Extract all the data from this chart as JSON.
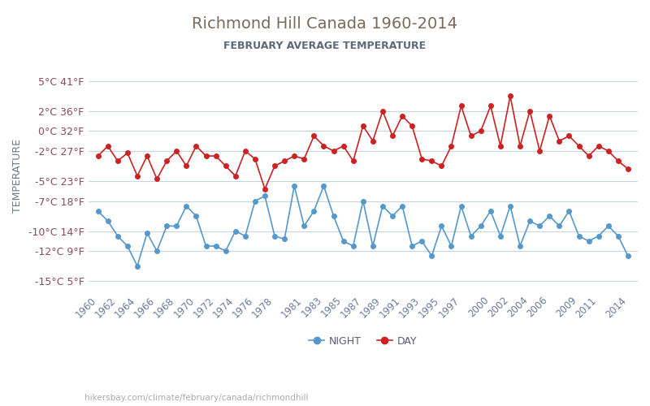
{
  "title": "Richmond Hill Canada 1960-2014",
  "subtitle": "FEBRUARY AVERAGE TEMPERATURE",
  "ylabel": "TEMPERATURE",
  "xlabel_bottom": "hikersbay.com/climate/february/canada/richmondhill",
  "title_color": "#7a6a5a",
  "subtitle_color": "#5a6a7a",
  "ylabel_color": "#6a7a8a",
  "line_color_day": "#cc2222",
  "line_color_night": "#5599cc",
  "background_color": "#ffffff",
  "grid_color": "#c8d4e0",
  "years": [
    1960,
    1961,
    1962,
    1963,
    1964,
    1965,
    1966,
    1967,
    1968,
    1969,
    1970,
    1971,
    1972,
    1973,
    1974,
    1975,
    1976,
    1977,
    1978,
    1979,
    1980,
    1981,
    1982,
    1983,
    1984,
    1985,
    1986,
    1987,
    1988,
    1989,
    1990,
    1991,
    1992,
    1993,
    1994,
    1995,
    1996,
    1997,
    1998,
    1999,
    2000,
    2001,
    2002,
    2003,
    2004,
    2005,
    2006,
    2007,
    2008,
    2009,
    2010,
    2011,
    2012,
    2013,
    2014
  ],
  "day_temps": [
    -2.5,
    -1.5,
    -3.0,
    -2.2,
    -4.5,
    -2.5,
    -4.8,
    -3.0,
    -2.0,
    -3.5,
    -1.5,
    -2.5,
    -2.5,
    -3.5,
    -4.5,
    -2.0,
    -2.8,
    -5.8,
    -3.5,
    -3.0,
    -2.5,
    -2.8,
    -0.5,
    -1.5,
    -2.0,
    -1.5,
    -3.0,
    0.5,
    -1.0,
    2.0,
    -0.5,
    1.5,
    0.5,
    -2.8,
    -3.0,
    -3.5,
    -1.5,
    2.5,
    -0.5,
    0.0,
    2.5,
    -1.5,
    3.5,
    -1.5,
    2.0,
    -2.0,
    1.5,
    -1.0,
    -0.5,
    -1.5,
    -2.5,
    -1.5,
    -2.0,
    -3.0,
    -3.8
  ],
  "night_temps": [
    -8.0,
    -9.0,
    -10.5,
    -11.5,
    -13.5,
    -10.2,
    -12.0,
    -9.5,
    -9.5,
    -7.5,
    -8.5,
    -11.5,
    -11.5,
    -12.0,
    -10.0,
    -10.5,
    -7.0,
    -6.5,
    -10.5,
    -10.8,
    -5.5,
    -9.5,
    -8.0,
    -5.5,
    -8.5,
    -11.0,
    -11.5,
    -7.0,
    -11.5,
    -7.5,
    -8.5,
    -7.5,
    -11.5,
    -11.0,
    -12.5,
    -9.5,
    -11.5,
    -7.5,
    -10.5,
    -9.5,
    -8.0,
    -10.5,
    -7.5,
    -11.5,
    -9.0,
    -9.5,
    -8.5,
    -9.5,
    -8.0,
    -10.5,
    -11.0,
    -10.5,
    -9.5,
    -10.5,
    -12.5
  ],
  "yticks_c": [
    5,
    2,
    0,
    -2,
    -5,
    -7,
    -10,
    -12,
    -15
  ],
  "yticks_f": [
    41,
    36,
    32,
    27,
    23,
    18,
    14,
    9,
    5
  ],
  "xtick_years": [
    1960,
    1962,
    1964,
    1966,
    1968,
    1970,
    1972,
    1974,
    1976,
    1978,
    1981,
    1983,
    1985,
    1987,
    1989,
    1991,
    1993,
    1995,
    1997,
    2000,
    2002,
    2004,
    2006,
    2009,
    2011,
    2014
  ],
  "legend_night": "NIGHT",
  "legend_day": "DAY",
  "marker_size": 4
}
